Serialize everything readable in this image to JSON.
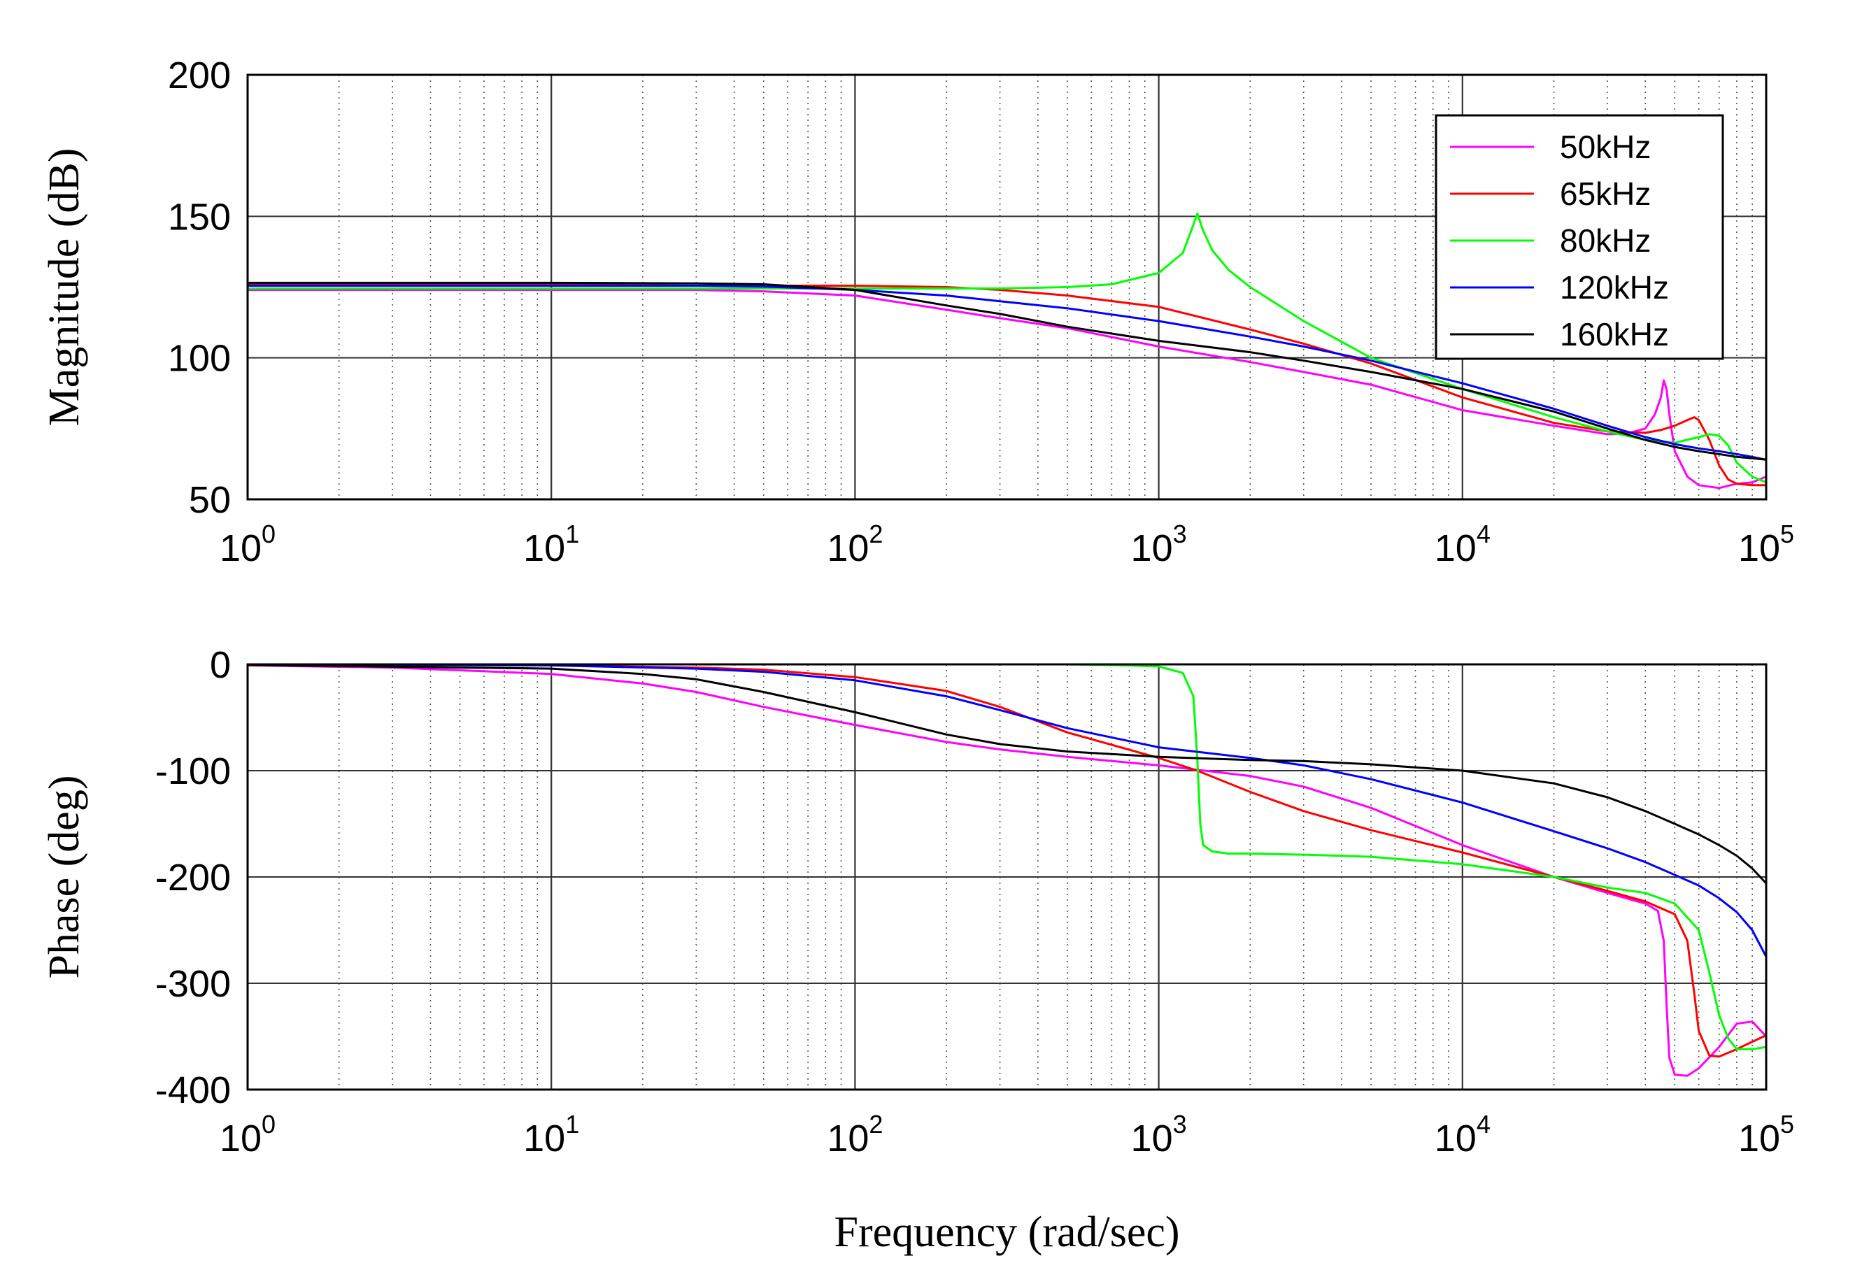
{
  "chart_data": [
    {
      "type": "line",
      "name": "magnitude",
      "xscale": "log",
      "xlim": [
        1,
        100000
      ],
      "ylim": [
        50,
        200
      ],
      "ylabel": "Magnitude (dB)",
      "xticks": [
        {
          "base": "10",
          "exp": "0"
        },
        {
          "base": "10",
          "exp": "1"
        },
        {
          "base": "10",
          "exp": "2"
        },
        {
          "base": "10",
          "exp": "3"
        },
        {
          "base": "10",
          "exp": "4"
        },
        {
          "base": "10",
          "exp": "5"
        }
      ],
      "yticks": [
        "50",
        "100",
        "150",
        "200"
      ],
      "grid": true,
      "legend_position": "top-right",
      "series": [
        {
          "name": "50kHz",
          "color": "#ff00ff",
          "x": [
            1,
            3,
            10,
            30,
            50,
            100,
            200,
            300,
            500,
            1000,
            2000,
            3000,
            5000,
            10000,
            20000,
            30000,
            35000,
            40000,
            43000,
            45000,
            46000,
            47000,
            48000,
            50000,
            55000,
            60000,
            70000,
            80000,
            90000,
            100000
          ],
          "y": [
            124,
            124,
            124,
            124,
            123.5,
            122,
            117,
            114,
            110.5,
            104,
            98.5,
            95,
            90.5,
            81.5,
            76,
            73,
            73.3,
            75,
            80,
            86,
            92,
            89,
            80,
            67,
            58,
            55,
            54,
            55.5,
            56,
            58
          ]
        },
        {
          "name": "65kHz",
          "color": "#ff0000",
          "x": [
            1,
            3,
            10,
            30,
            50,
            100,
            200,
            300,
            500,
            1000,
            2000,
            3000,
            5000,
            10000,
            20000,
            30000,
            40000,
            45000,
            50000,
            55000,
            58000,
            60000,
            65000,
            70000,
            75000,
            80000,
            90000,
            100000
          ],
          "y": [
            126,
            126,
            126,
            125.5,
            125.5,
            125.5,
            125,
            124,
            122,
            118,
            110,
            105,
            98,
            86,
            77,
            74,
            73.5,
            74.5,
            76,
            78,
            79,
            78,
            71,
            62,
            57,
            55.5,
            55,
            55
          ]
        },
        {
          "name": "80kHz",
          "color": "#00ff00",
          "x": [
            1,
            10,
            100,
            300,
            500,
            700,
            1000,
            1200,
            1300,
            1340,
            1400,
            1500,
            1700,
            2000,
            3000,
            5000,
            10000,
            20000,
            30000,
            40000,
            50000,
            60000,
            65000,
            70000,
            75000,
            80000,
            90000,
            100000
          ],
          "y": [
            124.5,
            124.5,
            124.5,
            124.5,
            125,
            126,
            130,
            137,
            147,
            151,
            145,
            138,
            131,
            125,
            113,
            100,
            89,
            79,
            74,
            71,
            70,
            72,
            73,
            72.5,
            69,
            63,
            58,
            56
          ]
        },
        {
          "name": "120kHz",
          "color": "#0000ff",
          "x": [
            1,
            10,
            30,
            50,
            100,
            200,
            300,
            500,
            1000,
            2000,
            3000,
            5000,
            10000,
            20000,
            30000,
            40000,
            50000,
            60000,
            70000,
            80000,
            90000,
            100000
          ],
          "y": [
            125.5,
            125.5,
            125.5,
            125.2,
            124,
            122,
            120,
            117.5,
            113,
            107.5,
            104,
            99,
            91,
            82,
            76,
            72,
            69.5,
            68,
            67,
            66,
            65,
            64
          ]
        },
        {
          "name": "160kHz",
          "color": "#000000",
          "x": [
            1,
            10,
            30,
            50,
            100,
            200,
            300,
            500,
            1000,
            2000,
            3000,
            5000,
            10000,
            20000,
            30000,
            40000,
            50000,
            60000,
            70000,
            80000,
            90000,
            100000
          ],
          "y": [
            126.5,
            126.5,
            126.3,
            126,
            124,
            118.5,
            115.5,
            111,
            106,
            102,
            99,
            95,
            89,
            81,
            75,
            71,
            68.5,
            67,
            66,
            65,
            64.5,
            64
          ]
        }
      ]
    },
    {
      "type": "line",
      "name": "phase",
      "xscale": "log",
      "xlim": [
        1,
        100000
      ],
      "ylim": [
        -400,
        0
      ],
      "xlabel": "Frequency (rad/sec)",
      "ylabel": "Phase (deg)",
      "xticks": [
        {
          "base": "10",
          "exp": "0"
        },
        {
          "base": "10",
          "exp": "1"
        },
        {
          "base": "10",
          "exp": "2"
        },
        {
          "base": "10",
          "exp": "3"
        },
        {
          "base": "10",
          "exp": "4"
        },
        {
          "base": "10",
          "exp": "5"
        }
      ],
      "yticks": [
        "0",
        "-100",
        "-200",
        "-300",
        "-400"
      ],
      "grid": true,
      "series": [
        {
          "name": "50kHz",
          "color": "#ff00ff",
          "x": [
            1,
            3,
            10,
            20,
            30,
            50,
            100,
            200,
            300,
            500,
            1000,
            2000,
            3000,
            5000,
            10000,
            20000,
            30000,
            40000,
            44000,
            46000,
            47000,
            48000,
            50000,
            55000,
            60000,
            70000,
            80000,
            90000,
            100000
          ],
          "y": [
            -1,
            -3,
            -9,
            -18,
            -26,
            -40,
            -57,
            -73,
            -80,
            -87,
            -95,
            -105,
            -115,
            -135,
            -170,
            -200,
            -215,
            -225,
            -232,
            -260,
            -320,
            -370,
            -386,
            -387,
            -380,
            -360,
            -338,
            -336,
            -350
          ]
        },
        {
          "name": "65kHz",
          "color": "#ff0000",
          "x": [
            1,
            10,
            30,
            50,
            100,
            200,
            300,
            500,
            1000,
            1340,
            2000,
            3000,
            5000,
            10000,
            20000,
            30000,
            40000,
            50000,
            55000,
            58000,
            60000,
            65000,
            70000,
            80000,
            90000,
            100000
          ],
          "y": [
            0,
            -1,
            -3,
            -5,
            -12,
            -25,
            -40,
            -64,
            -88,
            -100,
            -120,
            -138,
            -156,
            -177,
            -200,
            -213,
            -223,
            -235,
            -260,
            -310,
            -345,
            -368,
            -369,
            -362,
            -355,
            -349
          ]
        },
        {
          "name": "80kHz",
          "color": "#00ff00",
          "x": [
            1,
            10,
            100,
            300,
            500,
            800,
            1000,
            1200,
            1300,
            1340,
            1370,
            1400,
            1500,
            1700,
            2000,
            3000,
            5000,
            10000,
            20000,
            30000,
            40000,
            50000,
            60000,
            65000,
            70000,
            75000,
            80000,
            90000,
            100000
          ],
          "y": [
            0,
            0,
            0,
            0,
            0,
            -1,
            -2,
            -8,
            -30,
            -90,
            -150,
            -170,
            -176,
            -178,
            -178,
            -179,
            -181,
            -188,
            -200,
            -210,
            -215,
            -225,
            -250,
            -290,
            -330,
            -352,
            -362,
            -362,
            -360
          ]
        },
        {
          "name": "120kHz",
          "color": "#0000ff",
          "x": [
            1,
            10,
            30,
            50,
            100,
            200,
            300,
            500,
            1000,
            2000,
            3000,
            5000,
            10000,
            20000,
            30000,
            40000,
            50000,
            60000,
            70000,
            80000,
            90000,
            100000
          ],
          "y": [
            0,
            -1,
            -4,
            -7,
            -15,
            -30,
            -43,
            -60,
            -78,
            -88,
            -95,
            -108,
            -130,
            -157,
            -173,
            -186,
            -198,
            -208,
            -220,
            -233,
            -250,
            -275
          ]
        },
        {
          "name": "160kHz",
          "color": "#000000",
          "x": [
            1,
            10,
            20,
            30,
            50,
            100,
            200,
            300,
            500,
            1000,
            2000,
            3000,
            5000,
            10000,
            20000,
            30000,
            40000,
            50000,
            60000,
            70000,
            80000,
            90000,
            100000
          ],
          "y": [
            -0.5,
            -4,
            -9,
            -14,
            -26,
            -45,
            -66,
            -75,
            -82,
            -87,
            -90,
            -91,
            -94,
            -100,
            -112,
            -125,
            -138,
            -150,
            -160,
            -170,
            -180,
            -192,
            -206
          ]
        }
      ]
    }
  ]
}
